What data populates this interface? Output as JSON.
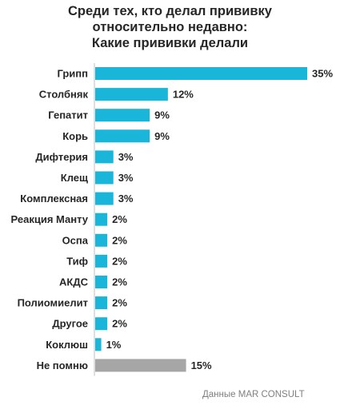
{
  "title_lines": [
    "Среди тех, кто делал прививку",
    "относительно недавно:",
    "Какие прививки делали"
  ],
  "source": "Данные MAR CONSULT",
  "colors": {
    "bar": "#1ab6d9",
    "bar_muted": "#a6a6a6",
    "axis": "#bfbfbf"
  },
  "chart_data": {
    "type": "bar",
    "orientation": "horizontal",
    "title": "Среди тех, кто делал прививку относительно недавно: Какие прививки делали",
    "categories": [
      "Грипп",
      "Столбняк",
      "Гепатит",
      "Корь",
      "Дифтерия",
      "Клещ",
      "Комплексная",
      "Реакция Манту",
      "Оспа",
      "Тиф",
      "АКДС",
      "Полиомиелит",
      "Другое",
      "Коклюш",
      "Не помню"
    ],
    "values": [
      35,
      12,
      9,
      9,
      3,
      3,
      3,
      2,
      2,
      2,
      2,
      2,
      2,
      1,
      15
    ],
    "value_labels": [
      "35%",
      "12%",
      "9%",
      "9%",
      "3%",
      "3%",
      "3%",
      "2%",
      "2%",
      "2%",
      "2%",
      "2%",
      "2%",
      "1%",
      "15%"
    ],
    "bar_colors": [
      "#1ab6d9",
      "#1ab6d9",
      "#1ab6d9",
      "#1ab6d9",
      "#1ab6d9",
      "#1ab6d9",
      "#1ab6d9",
      "#1ab6d9",
      "#1ab6d9",
      "#1ab6d9",
      "#1ab6d9",
      "#1ab6d9",
      "#1ab6d9",
      "#1ab6d9",
      "#a6a6a6"
    ],
    "xlim": [
      0,
      35
    ],
    "unit": "%",
    "grid": false,
    "legend": "none"
  }
}
